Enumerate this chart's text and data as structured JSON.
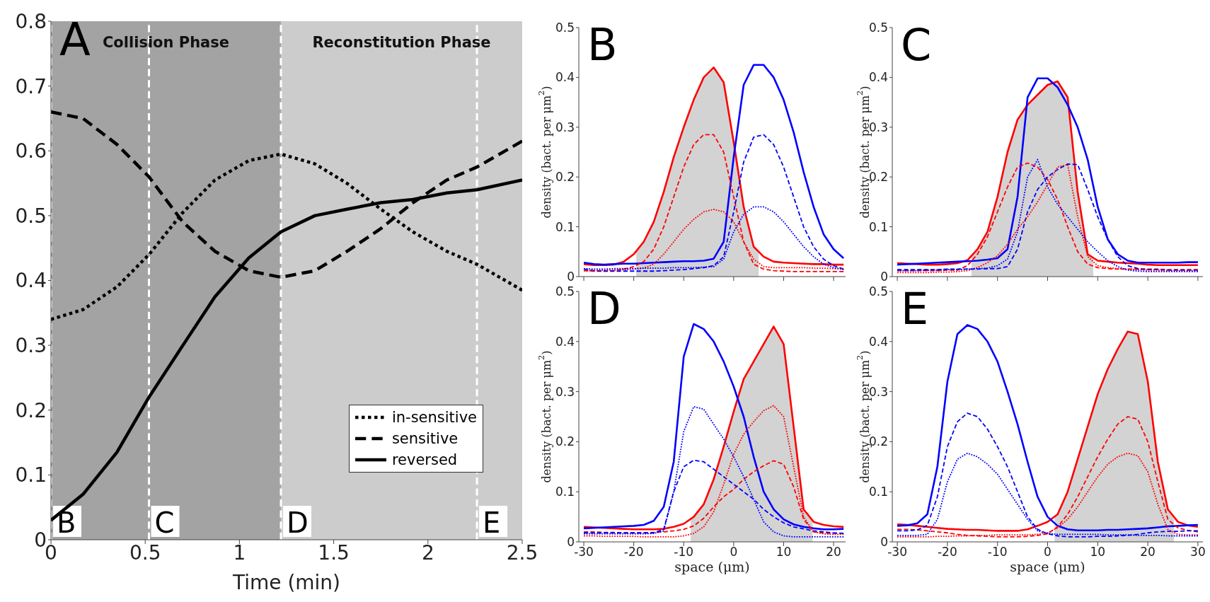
{
  "chart_data": [
    {
      "type": "line",
      "xlabel": "Time (min)",
      "xlim": [
        0,
        2.5
      ],
      "ylim": [
        0,
        0.8
      ],
      "xticks": [
        0,
        0.5,
        1,
        1.5,
        2,
        2.5
      ],
      "yticks": [
        0,
        0.1,
        0.2,
        0.3,
        0.4,
        0.5,
        0.6,
        0.7,
        0.8
      ],
      "legend": "bottom right",
      "annotations": [
        "A"
      ],
      "bands": [
        {
          "axis": "x",
          "from": 0,
          "to": 1.22,
          "label": "Collision Phase",
          "color": "#a3a3a3"
        },
        {
          "axis": "x",
          "from": 1.22,
          "to": 2.5,
          "label": "Reconstitution Phase",
          "color": "#cccccc"
        }
      ],
      "ref_lines": [
        {
          "axis": "x",
          "value": 0,
          "label": "B",
          "color": "#ffffff",
          "line_style": "dashed"
        },
        {
          "axis": "x",
          "value": 0.52,
          "label": "C",
          "color": "#ffffff",
          "line_style": "dashed"
        },
        {
          "axis": "x",
          "value": 1.22,
          "label": "D",
          "color": "#ffffff",
          "line_style": "dashed"
        },
        {
          "axis": "x",
          "value": 2.26,
          "label": "E",
          "color": "#ffffff",
          "line_style": "dashed"
        }
      ],
      "x": [
        0,
        0.17,
        0.35,
        0.52,
        0.7,
        0.87,
        1.05,
        1.22,
        1.4,
        1.57,
        1.75,
        1.92,
        2.1,
        2.26,
        2.5
      ],
      "series": [
        {
          "name": "in-sensitive",
          "color": "#000000",
          "line_style": "dotted",
          "values": [
            0.34,
            0.355,
            0.39,
            0.44,
            0.505,
            0.555,
            0.585,
            0.595,
            0.58,
            0.55,
            0.51,
            0.475,
            0.445,
            0.425,
            0.385
          ]
        },
        {
          "name": "sensitive",
          "color": "#000000",
          "line_style": "dashed",
          "values": [
            0.66,
            0.65,
            0.61,
            0.56,
            0.49,
            0.445,
            0.415,
            0.405,
            0.415,
            0.445,
            0.48,
            0.52,
            0.555,
            0.575,
            0.615
          ]
        },
        {
          "name": "reversed",
          "color": "#000000",
          "line_style": "solid",
          "values": [
            0.03,
            0.07,
            0.135,
            0.22,
            0.3,
            0.375,
            0.435,
            0.475,
            0.5,
            0.51,
            0.52,
            0.525,
            0.535,
            0.54,
            0.555
          ]
        }
      ]
    },
    {
      "type": "line",
      "ylabel": "density (bact. per μm$^{2}$)",
      "xlim": [
        -31,
        22.4
      ],
      "ylim": [
        0,
        0.5
      ],
      "xticks": [
        -30,
        -20,
        -10,
        0,
        10,
        20
      ],
      "yticks": [
        0,
        0.1,
        0.2,
        0.3,
        0.4,
        0.5
      ],
      "tick_labels": "y",
      "annotations": [
        "B"
      ],
      "x": [
        -30,
        -28,
        -26,
        -24,
        -22,
        -20,
        -18,
        -16,
        -14,
        -12,
        -10,
        -8,
        -6,
        -4,
        -2,
        0,
        2,
        4,
        6,
        8,
        10,
        12,
        14,
        16,
        18,
        20,
        22
      ],
      "series": [
        {
          "type": "area",
          "color": "#d3d3d3",
          "x": [
            -19.5,
            -18,
            -16,
            -14,
            -12,
            -10,
            -8,
            -6,
            -4,
            -2,
            0,
            2,
            4,
            5
          ],
          "values": [
            0.05,
            0.07,
            0.11,
            0.17,
            0.24,
            0.3,
            0.355,
            0.4,
            0.42,
            0.39,
            0.27,
            0.14,
            0.06,
            0.05
          ]
        },
        {
          "color": "#ff0000",
          "line_style": "solid",
          "values": [
            0.025,
            0.023,
            0.023,
            0.024,
            0.03,
            0.045,
            0.07,
            0.11,
            0.17,
            0.24,
            0.3,
            0.355,
            0.4,
            0.42,
            0.39,
            0.27,
            0.14,
            0.06,
            0.04,
            0.03,
            0.028,
            0.027,
            0.026,
            0.025,
            0.025,
            0.024,
            0.024
          ]
        },
        {
          "color": "#ff0000",
          "line_style": "dashed",
          "values": [
            0.012,
            0.011,
            0.011,
            0.012,
            0.015,
            0.02,
            0.03,
            0.055,
            0.1,
            0.16,
            0.22,
            0.265,
            0.285,
            0.285,
            0.25,
            0.16,
            0.07,
            0.025,
            0.015,
            0.012,
            0.011,
            0.01,
            0.01,
            0.01,
            0.01,
            0.01,
            0.01
          ]
        },
        {
          "color": "#ff0000",
          "line_style": "dotted",
          "values": [
            0.012,
            0.012,
            0.013,
            0.013,
            0.014,
            0.015,
            0.017,
            0.025,
            0.045,
            0.07,
            0.095,
            0.115,
            0.13,
            0.135,
            0.13,
            0.11,
            0.07,
            0.035,
            0.02,
            0.018,
            0.018,
            0.018,
            0.018,
            0.017,
            0.017,
            0.016,
            0.016
          ]
        },
        {
          "color": "#0000ff",
          "line_style": "solid",
          "values": [
            0.028,
            0.025,
            0.024,
            0.025,
            0.026,
            0.026,
            0.027,
            0.028,
            0.029,
            0.03,
            0.031,
            0.031,
            0.032,
            0.036,
            0.07,
            0.24,
            0.385,
            0.425,
            0.425,
            0.4,
            0.355,
            0.29,
            0.21,
            0.14,
            0.085,
            0.055,
            0.037
          ]
        },
        {
          "color": "#0000ff",
          "line_style": "dashed",
          "values": [
            0.015,
            0.012,
            0.011,
            0.011,
            0.011,
            0.011,
            0.011,
            0.011,
            0.012,
            0.013,
            0.014,
            0.016,
            0.018,
            0.022,
            0.04,
            0.13,
            0.23,
            0.28,
            0.285,
            0.265,
            0.22,
            0.16,
            0.1,
            0.06,
            0.035,
            0.022,
            0.015
          ]
        },
        {
          "color": "#0000ff",
          "line_style": "dotted",
          "values": [
            0.016,
            0.015,
            0.015,
            0.016,
            0.016,
            0.016,
            0.017,
            0.017,
            0.017,
            0.018,
            0.018,
            0.018,
            0.019,
            0.02,
            0.035,
            0.09,
            0.125,
            0.14,
            0.14,
            0.13,
            0.11,
            0.085,
            0.06,
            0.04,
            0.025,
            0.018,
            0.014
          ]
        }
      ]
    },
    {
      "type": "line",
      "ylabel": "density (bact. per μm$^{2}$)",
      "xlim": [
        -31,
        31
      ],
      "ylim": [
        0,
        0.5
      ],
      "xticks": [
        -30,
        -20,
        -10,
        0,
        10,
        20,
        30
      ],
      "yticks": [
        0,
        0.1,
        0.2,
        0.3,
        0.4,
        0.5
      ],
      "tick_labels": "y",
      "annotations": [
        "C"
      ],
      "x": [
        -30,
        -28,
        -26,
        -24,
        -22,
        -20,
        -18,
        -16,
        -14,
        -12,
        -10,
        -8,
        -6,
        -4,
        -2,
        0,
        2,
        4,
        6,
        8,
        10,
        12,
        14,
        16,
        18,
        20,
        22,
        24,
        26,
        28,
        30
      ],
      "series": [
        {
          "type": "area",
          "color": "#d3d3d3",
          "x": [
            -15.2,
            -14,
            -12,
            -10,
            -8,
            -6,
            -4,
            -2,
            0,
            2,
            4,
            6,
            8,
            9.1
          ],
          "values": [
            0.04,
            0.055,
            0.09,
            0.16,
            0.25,
            0.315,
            0.345,
            0.365,
            0.385,
            0.392,
            0.36,
            0.17,
            0.045,
            0.035
          ]
        },
        {
          "color": "#ff0000",
          "line_style": "solid",
          "values": [
            0.027,
            0.026,
            0.025,
            0.024,
            0.024,
            0.025,
            0.027,
            0.033,
            0.055,
            0.09,
            0.16,
            0.25,
            0.315,
            0.345,
            0.365,
            0.385,
            0.392,
            0.36,
            0.17,
            0.045,
            0.032,
            0.03,
            0.028,
            0.027,
            0.026,
            0.024,
            0.023,
            0.023,
            0.023,
            0.023,
            0.023
          ]
        },
        {
          "color": "#ff0000",
          "line_style": "dashed",
          "values": [
            0.012,
            0.012,
            0.012,
            0.012,
            0.012,
            0.013,
            0.013,
            0.022,
            0.045,
            0.08,
            0.13,
            0.18,
            0.22,
            0.228,
            0.22,
            0.195,
            0.155,
            0.1,
            0.05,
            0.025,
            0.018,
            0.016,
            0.015,
            0.015,
            0.015,
            0.015,
            0.015,
            0.014,
            0.014,
            0.014,
            0.014
          ]
        },
        {
          "color": "#ff0000",
          "line_style": "dotted",
          "values": [
            0.008,
            0.008,
            0.008,
            0.008,
            0.009,
            0.009,
            0.01,
            0.012,
            0.018,
            0.028,
            0.042,
            0.065,
            0.095,
            0.12,
            0.15,
            0.185,
            0.22,
            0.225,
            0.12,
            0.04,
            0.022,
            0.018,
            0.016,
            0.015,
            0.014,
            0.013,
            0.013,
            0.012,
            0.012,
            0.012,
            0.012
          ]
        },
        {
          "color": "#0000ff",
          "line_style": "solid",
          "values": [
            0.024,
            0.025,
            0.026,
            0.027,
            0.028,
            0.029,
            0.03,
            0.031,
            0.032,
            0.034,
            0.037,
            0.055,
            0.16,
            0.36,
            0.398,
            0.398,
            0.38,
            0.345,
            0.3,
            0.235,
            0.14,
            0.075,
            0.045,
            0.032,
            0.028,
            0.028,
            0.028,
            0.028,
            0.028,
            0.029,
            0.029
          ]
        },
        {
          "color": "#0000ff",
          "line_style": "dashed",
          "values": [
            0.014,
            0.014,
            0.014,
            0.014,
            0.014,
            0.015,
            0.015,
            0.015,
            0.015,
            0.016,
            0.016,
            0.02,
            0.055,
            0.13,
            0.175,
            0.2,
            0.215,
            0.226,
            0.225,
            0.175,
            0.12,
            0.075,
            0.04,
            0.022,
            0.016,
            0.014,
            0.014,
            0.013,
            0.013,
            0.013,
            0.013
          ]
        },
        {
          "color": "#0000ff",
          "line_style": "dotted",
          "values": [
            0.012,
            0.012,
            0.012,
            0.013,
            0.013,
            0.014,
            0.014,
            0.015,
            0.016,
            0.017,
            0.022,
            0.035,
            0.09,
            0.2,
            0.235,
            0.18,
            0.145,
            0.12,
            0.095,
            0.07,
            0.05,
            0.032,
            0.02,
            0.013,
            0.011,
            0.01,
            0.01,
            0.01,
            0.01,
            0.01,
            0.01
          ]
        }
      ]
    },
    {
      "type": "line",
      "xlabel": "space (μm)",
      "ylabel": "density (bact. per μm$^{2}$)",
      "xlim": [
        -31,
        22.4
      ],
      "ylim": [
        0,
        0.5
      ],
      "xticks": [
        -30,
        -20,
        -10,
        0,
        10,
        20
      ],
      "yticks": [
        0,
        0.1,
        0.2,
        0.3,
        0.4,
        0.5
      ],
      "annotations": [
        "D"
      ],
      "x": [
        -30,
        -28,
        -26,
        -24,
        -22,
        -20,
        -18,
        -16,
        -14,
        -12,
        -10,
        -8,
        -6,
        -4,
        -2,
        0,
        2,
        4,
        6,
        8,
        10,
        12,
        14,
        16,
        18,
        20,
        22
      ],
      "series": [
        {
          "type": "area",
          "color": "#d3d3d3",
          "x": [
            -8.6,
            -8,
            -6,
            -4,
            -2,
            0,
            2,
            4,
            6,
            8,
            10,
            12,
            14,
            15.8
          ],
          "values": [
            0.045,
            0.05,
            0.075,
            0.125,
            0.19,
            0.26,
            0.325,
            0.36,
            0.395,
            0.43,
            0.395,
            0.23,
            0.065,
            0.042
          ]
        },
        {
          "color": "#ff0000",
          "line_style": "solid",
          "values": [
            0.03,
            0.029,
            0.028,
            0.027,
            0.026,
            0.025,
            0.025,
            0.025,
            0.026,
            0.03,
            0.036,
            0.05,
            0.075,
            0.125,
            0.19,
            0.26,
            0.325,
            0.36,
            0.395,
            0.43,
            0.395,
            0.23,
            0.065,
            0.04,
            0.034,
            0.031,
            0.03
          ]
        },
        {
          "color": "#ff0000",
          "line_style": "dashed",
          "values": [
            0.02,
            0.02,
            0.019,
            0.019,
            0.018,
            0.018,
            0.018,
            0.019,
            0.02,
            0.022,
            0.025,
            0.032,
            0.047,
            0.07,
            0.09,
            0.105,
            0.125,
            0.14,
            0.152,
            0.162,
            0.155,
            0.11,
            0.045,
            0.02,
            0.018,
            0.017,
            0.017
          ]
        },
        {
          "color": "#ff0000",
          "line_style": "dotted",
          "values": [
            0.012,
            0.012,
            0.011,
            0.011,
            0.011,
            0.011,
            0.01,
            0.01,
            0.01,
            0.01,
            0.012,
            0.017,
            0.03,
            0.06,
            0.115,
            0.175,
            0.215,
            0.24,
            0.262,
            0.272,
            0.25,
            0.15,
            0.05,
            0.02,
            0.016,
            0.015,
            0.015
          ]
        },
        {
          "color": "#0000ff",
          "line_style": "solid",
          "values": [
            0.027,
            0.028,
            0.029,
            0.03,
            0.031,
            0.032,
            0.034,
            0.042,
            0.07,
            0.16,
            0.37,
            0.435,
            0.425,
            0.4,
            0.36,
            0.31,
            0.25,
            0.17,
            0.1,
            0.065,
            0.045,
            0.035,
            0.03,
            0.027,
            0.025,
            0.025,
            0.026
          ]
        },
        {
          "color": "#0000ff",
          "line_style": "dashed",
          "values": [
            0.018,
            0.018,
            0.018,
            0.018,
            0.018,
            0.018,
            0.018,
            0.018,
            0.025,
            0.1,
            0.15,
            0.163,
            0.16,
            0.145,
            0.13,
            0.115,
            0.1,
            0.085,
            0.065,
            0.05,
            0.038,
            0.03,
            0.026,
            0.022,
            0.02,
            0.018,
            0.017
          ]
        },
        {
          "color": "#0000ff",
          "line_style": "dotted",
          "values": [
            0.016,
            0.016,
            0.016,
            0.016,
            0.016,
            0.016,
            0.016,
            0.017,
            0.022,
            0.1,
            0.22,
            0.27,
            0.265,
            0.235,
            0.205,
            0.17,
            0.13,
            0.085,
            0.04,
            0.02,
            0.012,
            0.01,
            0.01,
            0.01,
            0.01,
            0.01,
            0.01
          ]
        }
      ]
    },
    {
      "type": "line",
      "xlabel": "space (μm)",
      "ylabel": "density (bact. per μm$^{2}$)",
      "xlim": [
        -31,
        31
      ],
      "ylim": [
        0,
        0.5
      ],
      "xticks": [
        -30,
        -20,
        -10,
        0,
        10,
        20,
        30
      ],
      "yticks": [
        0,
        0.1,
        0.2,
        0.3,
        0.4,
        0.5
      ],
      "annotations": [
        "E"
      ],
      "x": [
        -30,
        -28,
        -26,
        -24,
        -22,
        -20,
        -18,
        -16,
        -14,
        -12,
        -10,
        -8,
        -6,
        -4,
        -2,
        0,
        2,
        4,
        6,
        8,
        10,
        12,
        14,
        16,
        18,
        20,
        22,
        24,
        26,
        28,
        30
      ],
      "series": [
        {
          "type": "area",
          "color": "#d3d3d3",
          "x": [
            1.4,
            2,
            4,
            6,
            8,
            10,
            12,
            14,
            16,
            18,
            20,
            22,
            24,
            25.2
          ],
          "values": [
            0.05,
            0.055,
            0.1,
            0.165,
            0.23,
            0.295,
            0.345,
            0.385,
            0.42,
            0.415,
            0.32,
            0.16,
            0.065,
            0.045
          ]
        },
        {
          "color": "#ff0000",
          "line_style": "solid",
          "values": [
            0.035,
            0.034,
            0.032,
            0.03,
            0.028,
            0.026,
            0.025,
            0.024,
            0.024,
            0.023,
            0.022,
            0.022,
            0.022,
            0.025,
            0.032,
            0.04,
            0.055,
            0.1,
            0.165,
            0.23,
            0.295,
            0.345,
            0.385,
            0.42,
            0.415,
            0.32,
            0.16,
            0.065,
            0.04,
            0.033,
            0.03
          ]
        },
        {
          "color": "#ff0000",
          "line_style": "dashed",
          "values": [
            0.025,
            0.025,
            0.024,
            0.022,
            0.02,
            0.018,
            0.015,
            0.013,
            0.012,
            0.011,
            0.01,
            0.01,
            0.01,
            0.011,
            0.013,
            0.016,
            0.03,
            0.055,
            0.09,
            0.13,
            0.17,
            0.205,
            0.235,
            0.25,
            0.245,
            0.2,
            0.12,
            0.045,
            0.028,
            0.023,
            0.02
          ]
        },
        {
          "color": "#ff0000",
          "line_style": "dotted",
          "values": [
            0.01,
            0.01,
            0.01,
            0.01,
            0.011,
            0.011,
            0.012,
            0.012,
            0.013,
            0.013,
            0.014,
            0.014,
            0.014,
            0.014,
            0.015,
            0.018,
            0.028,
            0.045,
            0.07,
            0.1,
            0.13,
            0.155,
            0.17,
            0.177,
            0.172,
            0.14,
            0.075,
            0.025,
            0.015,
            0.014,
            0.014
          ]
        },
        {
          "color": "#0000ff",
          "line_style": "solid",
          "values": [
            0.032,
            0.033,
            0.037,
            0.055,
            0.15,
            0.32,
            0.415,
            0.433,
            0.425,
            0.4,
            0.36,
            0.3,
            0.235,
            0.16,
            0.09,
            0.05,
            0.032,
            0.025,
            0.023,
            0.023,
            0.023,
            0.024,
            0.024,
            0.025,
            0.026,
            0.027,
            0.029,
            0.031,
            0.032,
            0.033,
            0.034
          ]
        },
        {
          "color": "#0000ff",
          "line_style": "dashed",
          "values": [
            0.022,
            0.022,
            0.024,
            0.033,
            0.09,
            0.19,
            0.24,
            0.257,
            0.25,
            0.225,
            0.19,
            0.15,
            0.1,
            0.05,
            0.025,
            0.016,
            0.012,
            0.01,
            0.01,
            0.01,
            0.011,
            0.011,
            0.012,
            0.013,
            0.015,
            0.018,
            0.02,
            0.021,
            0.021,
            0.022,
            0.022
          ]
        },
        {
          "color": "#0000ff",
          "line_style": "dotted",
          "values": [
            0.013,
            0.013,
            0.013,
            0.015,
            0.045,
            0.12,
            0.165,
            0.177,
            0.17,
            0.155,
            0.135,
            0.105,
            0.075,
            0.045,
            0.022,
            0.017,
            0.015,
            0.015,
            0.015,
            0.015,
            0.015,
            0.014,
            0.014,
            0.014,
            0.013,
            0.013,
            0.013,
            0.012,
            0.012,
            0.012,
            0.012
          ]
        }
      ]
    }
  ]
}
